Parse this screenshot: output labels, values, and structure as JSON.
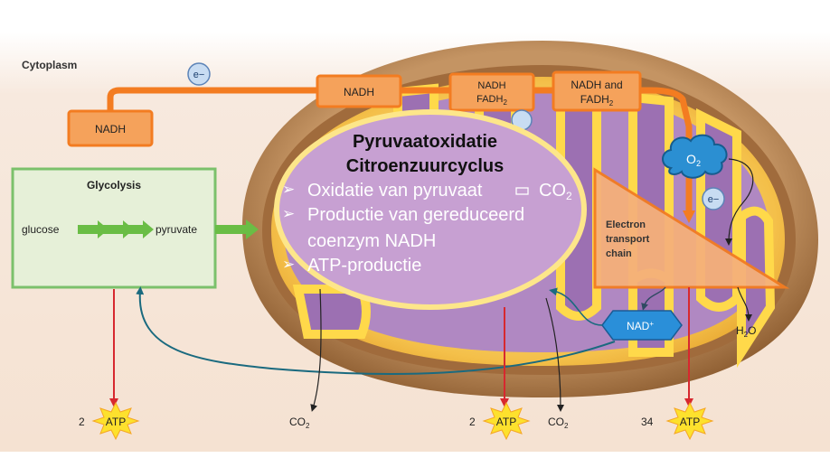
{
  "cytoplasm_label": "Cytoplasm",
  "electron": "e−",
  "electron_chain": "e−",
  "nadh_glycolysis": "NADH",
  "nadh_pyruvate": "NADH",
  "nadh_fadh2_cycle": {
    "line1": "NADH",
    "line2": "FADH",
    "sub": "2"
  },
  "nadh_and_fadh2": {
    "line1": "NADH and",
    "line2": "FADH",
    "sub": "2"
  },
  "glycolysis": {
    "title": "Glycolysis",
    "input": "glucose",
    "output": "pyruvate"
  },
  "overlay": {
    "title_line1": "Pyruvaatoxidatie",
    "title_line2": "Citroenzuurcyclus",
    "bullets": [
      "Oxidatie van pyruvaat",
      "CO",
      "Productie van gereduceerd",
      "coenzym NADH",
      "ATP-productie"
    ],
    "bullet_sub": "2"
  },
  "etc": {
    "line1": "Electron",
    "line2": "transport",
    "line3": "chain"
  },
  "oxygen": {
    "symbol": "O",
    "sub": "2"
  },
  "nad_plus": {
    "text": "NAD",
    "sup": "+"
  },
  "water": {
    "h": "H",
    "sub": "2",
    "o": "O"
  },
  "co2": {
    "text": "CO",
    "sub": "2"
  },
  "atp": [
    {
      "count": "2",
      "label": "ATP"
    },
    {
      "count": "2",
      "label": "ATP"
    },
    {
      "count": "34",
      "label": "ATP"
    }
  ],
  "colors": {
    "orange": "#f37c21",
    "purple": "#b592c6",
    "green": "#6abd45",
    "red": "#d7282f",
    "teal": "#1a6a7f",
    "blue_hex": "#2b8fd2"
  }
}
